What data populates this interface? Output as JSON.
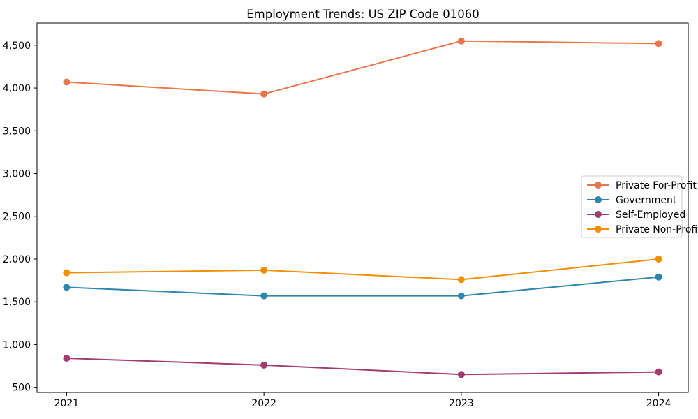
{
  "title": "Employment Trends: US ZIP Code 01060",
  "chart_data": {
    "type": "line",
    "title": "Employment Trends: US ZIP Code 01060",
    "x": [
      2021,
      2022,
      2023,
      2024
    ],
    "categories": [
      "2021",
      "2022",
      "2023",
      "2024"
    ],
    "series": [
      {
        "name": "Private For-Profit",
        "color": "#E8764B",
        "values": [
          4070,
          3930,
          4550,
          4520
        ]
      },
      {
        "name": "Government",
        "color": "#2E86AB",
        "values": [
          1670,
          1570,
          1570,
          1790
        ]
      },
      {
        "name": "Self-Employed",
        "color": "#A23B72",
        "values": [
          840,
          760,
          650,
          680
        ]
      },
      {
        "name": "Private Non-Profit",
        "color": "#F18F01",
        "values": [
          1840,
          1870,
          1760,
          2000
        ]
      }
    ],
    "xlabel": "",
    "ylabel": "",
    "xlim": [
      2020.85,
      2024.15
    ],
    "ylim": [
      440,
      4760
    ],
    "yticks": [
      500,
      1000,
      1500,
      2000,
      2500,
      3000,
      3500,
      4000,
      4500
    ],
    "ytick_labels": [
      "500",
      "1,000",
      "1,500",
      "2,000",
      "2,500",
      "3,000",
      "3,500",
      "4,000",
      "4,500"
    ],
    "grid": false,
    "legend_position": "center-right",
    "axis_color": "#000000",
    "legend_border_color": "#cccccc",
    "marker": "circle",
    "marker_radius": 5,
    "line_width": 2
  }
}
